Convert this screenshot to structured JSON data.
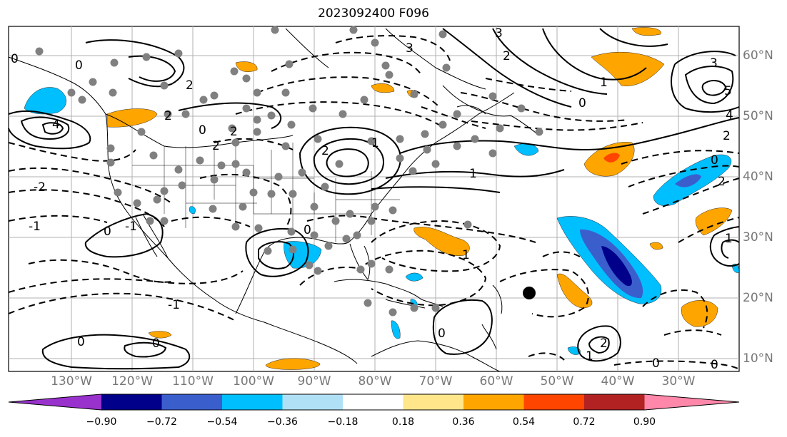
{
  "title": "2023092400 F096",
  "lat_labels": [
    "60°N",
    "50°N",
    "40°N",
    "30°N",
    "20°N",
    "10°N"
  ],
  "lon_labels": [
    "130°W",
    "120°W",
    "110°W",
    "100°W",
    "90°W",
    "80°W",
    "70°W",
    "60°W",
    "50°W",
    "40°W",
    "30°W"
  ],
  "colorbar": {
    "ticks": [
      "−0.90",
      "−0.72",
      "−0.54",
      "−0.36",
      "−0.18",
      "0.18",
      "0.36",
      "0.54",
      "0.72",
      "0.90"
    ],
    "colors": [
      "#9932cc",
      "#00008b",
      "#3a5fcd",
      "#00bfff",
      "#b0e0f6",
      "#ffffff",
      "#ffe68a",
      "#ffa500",
      "#ff4500",
      "#b22222",
      "#ff88aa"
    ]
  },
  "contour_labels": [
    "0",
    "1",
    "2",
    "3",
    "4",
    "5",
    "-1",
    "-2"
  ],
  "colors": {
    "land_line": "#000000",
    "grid": "#b0b0b0",
    "marker": "#808080",
    "positive_fill": "#ffa500",
    "negative_fill": "#00bfff"
  }
}
